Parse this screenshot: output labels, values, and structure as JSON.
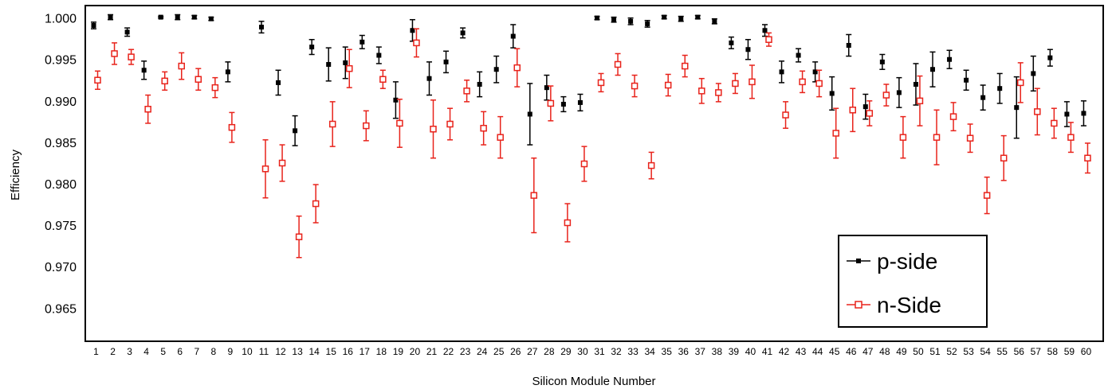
{
  "chart_data": {
    "type": "scatter",
    "title": "",
    "xlabel": "Silicon Module Number",
    "ylabel": "Efficiency",
    "ylim": [
      0.961,
      1.0015
    ],
    "yticks": [
      "0.965",
      "0.970",
      "0.975",
      "0.980",
      "0.985",
      "0.990",
      "0.995",
      "1.000"
    ],
    "x": [
      1,
      2,
      3,
      4,
      5,
      6,
      7,
      8,
      9,
      10,
      11,
      12,
      13,
      14,
      15,
      16,
      17,
      18,
      19,
      20,
      21,
      22,
      23,
      24,
      25,
      26,
      27,
      28,
      29,
      30,
      31,
      32,
      33,
      34,
      35,
      36,
      37,
      38,
      39,
      40,
      41,
      42,
      43,
      44,
      45,
      46,
      47,
      48,
      49,
      50,
      51,
      52,
      53,
      54,
      55,
      56,
      57,
      58,
      59,
      60
    ],
    "grid": false,
    "legend_position": "bottom-right",
    "series": [
      {
        "name": "p-side",
        "color": "#000000",
        "marker": "filled-square",
        "values": [
          0.9991,
          1.0001,
          0.9983,
          0.9937,
          1.0001,
          1.0001,
          1.0001,
          0.9999,
          0.9935,
          null,
          0.9989,
          0.9922,
          0.9864,
          0.9965,
          0.9944,
          0.9946,
          0.9971,
          0.9955,
          0.9901,
          0.9985,
          0.9927,
          0.9947,
          0.9982,
          0.992,
          0.9938,
          0.9978,
          0.9884,
          0.9916,
          0.9896,
          0.9898,
          1.0,
          0.9998,
          0.9996,
          0.9993,
          1.0001,
          0.9999,
          1.0001,
          0.9996,
          0.997,
          0.9962,
          0.9985,
          0.9935,
          0.9955,
          0.9935,
          0.9909,
          0.9967,
          0.9893,
          0.9947,
          0.991,
          0.992,
          0.9938,
          0.995,
          0.9925,
          0.9904,
          0.9915,
          0.9892,
          0.9933,
          0.9952,
          0.9884,
          0.9885
        ],
        "errors": [
          0.0004,
          0.0003,
          0.0005,
          0.0011,
          0.0001,
          0.0003,
          0.0002,
          0.0002,
          0.0012,
          null,
          0.0007,
          0.0015,
          0.0018,
          0.0009,
          0.002,
          0.0019,
          0.0008,
          0.001,
          0.0022,
          0.0013,
          0.002,
          0.0013,
          0.0006,
          0.0015,
          0.0016,
          0.0014,
          0.0037,
          0.0015,
          0.0009,
          0.001,
          0.0002,
          0.0003,
          0.0004,
          0.0004,
          0.0002,
          0.0003,
          0.0002,
          0.0003,
          0.0007,
          0.0012,
          0.0007,
          0.0013,
          0.0008,
          0.0012,
          0.002,
          0.0013,
          0.0015,
          0.0009,
          0.0018,
          0.0025,
          0.0021,
          0.0011,
          0.0012,
          0.0015,
          0.0018,
          0.0037,
          0.0021,
          0.001,
          0.0015,
          0.0015
        ]
      },
      {
        "name": "n-Side",
        "color": "#e8231b",
        "marker": "open-square",
        "values": [
          0.9925,
          0.9957,
          0.9953,
          0.989,
          0.9924,
          0.9942,
          0.9926,
          0.9916,
          0.9868,
          null,
          0.9818,
          0.9825,
          0.9736,
          0.9776,
          0.9872,
          0.9939,
          0.987,
          0.9926,
          0.9873,
          0.997,
          0.9866,
          0.9872,
          0.9912,
          0.9867,
          0.9856,
          0.994,
          0.9786,
          0.9897,
          0.9753,
          0.9824,
          0.9922,
          0.9944,
          0.9918,
          0.9822,
          0.9919,
          0.9942,
          0.9912,
          0.991,
          0.9921,
          0.9923,
          0.9974,
          0.9883,
          0.9923,
          0.9921,
          0.9861,
          0.9889,
          0.9885,
          0.9907,
          0.9856,
          0.99,
          0.9856,
          0.9881,
          0.9855,
          0.9786,
          0.9831,
          0.9922,
          0.9887,
          0.9873,
          0.9856,
          0.9831
        ],
        "errors": [
          0.0011,
          0.0013,
          0.0009,
          0.0017,
          0.0011,
          0.0016,
          0.0013,
          0.0012,
          0.0018,
          null,
          0.0035,
          0.0022,
          0.0025,
          0.0023,
          0.0027,
          0.0023,
          0.0018,
          0.0011,
          0.0029,
          0.0017,
          0.0035,
          0.0019,
          0.0013,
          0.002,
          0.0025,
          0.0023,
          0.0045,
          0.0021,
          0.0023,
          0.0021,
          0.0011,
          0.0013,
          0.0013,
          0.0016,
          0.0013,
          0.0013,
          0.0015,
          0.0011,
          0.0012,
          0.002,
          0.0008,
          0.0016,
          0.0013,
          0.0016,
          0.003,
          0.0026,
          0.0015,
          0.0013,
          0.0025,
          0.003,
          0.0033,
          0.0017,
          0.0017,
          0.0022,
          0.0027,
          0.0024,
          0.0028,
          0.0018,
          0.0018,
          0.0018
        ]
      }
    ]
  }
}
